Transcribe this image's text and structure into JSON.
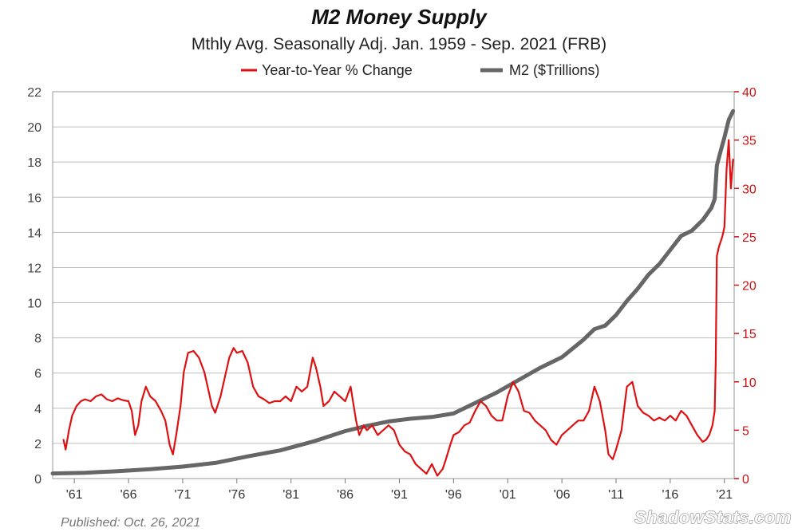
{
  "chart_data": {
    "type": "line",
    "title": "M2 Money Supply",
    "subtitle": "Mthly Avg. Seasonally Adj. Jan. 1959 - Sep. 2021  (FRB)",
    "published": "Published: Oct. 26, 2021",
    "brand": "ShadowStats.com",
    "left_axis": {
      "min": 0,
      "max": 22,
      "ticks": [
        "0",
        "2",
        "4",
        "6",
        "8",
        "10",
        "12",
        "14",
        "16",
        "18",
        "20",
        "22"
      ]
    },
    "right_axis": {
      "min": 0,
      "max": 40,
      "ticks": [
        "0",
        "5",
        "10",
        "15",
        "20",
        "25",
        "30",
        "35",
        "40"
      ]
    },
    "x_axis": {
      "min": 1959.0,
      "max": 2021.9,
      "tick_years": [
        1961,
        1966,
        1971,
        1976,
        1981,
        1986,
        1991,
        1996,
        2001,
        2006,
        2011,
        2016,
        2021
      ],
      "tick_labels": [
        "'61",
        "'66",
        "'71",
        "'76",
        "'81",
        "'86",
        "'91",
        "'96",
        "'01",
        "'06",
        "'11",
        "'16",
        "'21"
      ]
    },
    "grid": true,
    "legend_position": "top",
    "series": [
      {
        "name": "Year-to-Year % Change",
        "axis": "right",
        "color": "#dd1111",
        "x": [
          1960.0,
          1960.2,
          1960.5,
          1960.8,
          1961.2,
          1961.6,
          1962.0,
          1962.5,
          1963.0,
          1963.5,
          1964.0,
          1964.5,
          1965.0,
          1965.5,
          1966.0,
          1966.3,
          1966.6,
          1966.9,
          1967.2,
          1967.6,
          1968.0,
          1968.5,
          1969.0,
          1969.4,
          1969.8,
          1970.1,
          1970.4,
          1970.8,
          1971.1,
          1971.5,
          1972.0,
          1972.5,
          1973.0,
          1973.3,
          1973.7,
          1974.0,
          1974.5,
          1975.0,
          1975.3,
          1975.7,
          1976.0,
          1976.5,
          1977.0,
          1977.5,
          1978.0,
          1978.5,
          1979.0,
          1979.5,
          1980.0,
          1980.5,
          1981.0,
          1981.5,
          1982.0,
          1982.5,
          1983.0,
          1983.3,
          1983.7,
          1984.0,
          1984.5,
          1985.0,
          1985.5,
          1986.0,
          1986.5,
          1987.0,
          1987.3,
          1987.7,
          1988.0,
          1988.5,
          1989.0,
          1989.5,
          1990.0,
          1990.5,
          1991.0,
          1991.5,
          1992.0,
          1992.5,
          1993.0,
          1993.5,
          1994.0,
          1994.5,
          1995.0,
          1995.3,
          1995.7,
          1996.0,
          1996.5,
          1997.0,
          1997.5,
          1998.0,
          1998.5,
          1999.0,
          1999.5,
          2000.0,
          2000.5,
          2001.0,
          2001.5,
          2002.0,
          2002.5,
          2003.0,
          2003.5,
          2004.0,
          2004.5,
          2005.0,
          2005.5,
          2006.0,
          2006.5,
          2007.0,
          2007.5,
          2008.0,
          2008.5,
          2009.0,
          2009.5,
          2010.0,
          2010.3,
          2010.7,
          2011.0,
          2011.5,
          2012.0,
          2012.5,
          2013.0,
          2013.5,
          2014.0,
          2014.5,
          2015.0,
          2015.5,
          2016.0,
          2016.5,
          2017.0,
          2017.5,
          2018.0,
          2018.5,
          2019.0,
          2019.3,
          2019.6,
          2019.9,
          2020.1,
          2020.2,
          2020.3,
          2020.5,
          2020.8,
          2021.0,
          2021.2,
          2021.4,
          2021.6,
          2021.8
        ],
        "values": [
          4.0,
          3.0,
          5.0,
          6.5,
          7.5,
          8.0,
          8.2,
          8.0,
          8.5,
          8.7,
          8.2,
          8.0,
          8.3,
          8.1,
          8.0,
          7.0,
          4.5,
          5.5,
          8.0,
          9.5,
          8.5,
          8.0,
          7.0,
          6.0,
          3.5,
          2.5,
          4.5,
          7.5,
          11.0,
          13.0,
          13.2,
          12.5,
          11.0,
          9.5,
          7.5,
          6.8,
          8.5,
          11.0,
          12.5,
          13.5,
          13.0,
          13.2,
          12.0,
          9.5,
          8.5,
          8.2,
          7.8,
          8.0,
          8.0,
          8.5,
          8.0,
          9.5,
          9.0,
          9.5,
          12.5,
          11.5,
          9.5,
          7.5,
          8.0,
          9.0,
          8.5,
          8.0,
          9.5,
          6.0,
          4.5,
          5.5,
          5.0,
          5.5,
          4.5,
          5.0,
          5.5,
          5.0,
          3.5,
          2.8,
          2.5,
          1.5,
          1.0,
          0.5,
          1.5,
          0.3,
          1.0,
          2.0,
          3.5,
          4.5,
          4.8,
          5.5,
          5.8,
          7.0,
          8.0,
          7.5,
          6.5,
          6.0,
          6.0,
          8.5,
          10.0,
          9.0,
          7.0,
          6.8,
          6.0,
          5.5,
          5.0,
          4.0,
          3.5,
          4.5,
          5.0,
          5.5,
          6.0,
          6.0,
          7.0,
          9.5,
          8.0,
          5.0,
          2.5,
          2.0,
          3.0,
          5.0,
          9.5,
          10.0,
          7.5,
          6.8,
          6.5,
          6.0,
          6.3,
          6.0,
          6.5,
          6.0,
          7.0,
          6.5,
          5.5,
          4.5,
          3.8,
          4.0,
          4.5,
          5.5,
          7.0,
          12.0,
          23.0,
          24.0,
          25.0,
          26.0,
          32.0,
          35.0,
          30.0,
          33.0
        ]
      },
      {
        "name": "M2 ($Trillions)",
        "axis": "left",
        "color": "#666666",
        "x": [
          1959.0,
          1962.0,
          1965.0,
          1968.0,
          1971.0,
          1974.0,
          1977.0,
          1980.0,
          1983.0,
          1986.0,
          1988.0,
          1990.0,
          1992.0,
          1994.0,
          1996.0,
          1998.0,
          2000.0,
          2002.0,
          2004.0,
          2006.0,
          2008.0,
          2009.0,
          2010.0,
          2011.0,
          2012.0,
          2013.0,
          2014.0,
          2015.0,
          2016.0,
          2017.0,
          2018.0,
          2019.0,
          2019.8,
          2020.1,
          2020.3,
          2020.6,
          2021.0,
          2021.4,
          2021.8
        ],
        "values": [
          0.29,
          0.33,
          0.42,
          0.53,
          0.68,
          0.89,
          1.26,
          1.6,
          2.1,
          2.7,
          3.0,
          3.25,
          3.4,
          3.5,
          3.7,
          4.3,
          4.9,
          5.6,
          6.3,
          6.9,
          7.9,
          8.5,
          8.7,
          9.3,
          10.1,
          10.8,
          11.6,
          12.2,
          13.0,
          13.8,
          14.1,
          14.7,
          15.4,
          15.9,
          17.8,
          18.5,
          19.4,
          20.4,
          20.9
        ]
      }
    ]
  }
}
